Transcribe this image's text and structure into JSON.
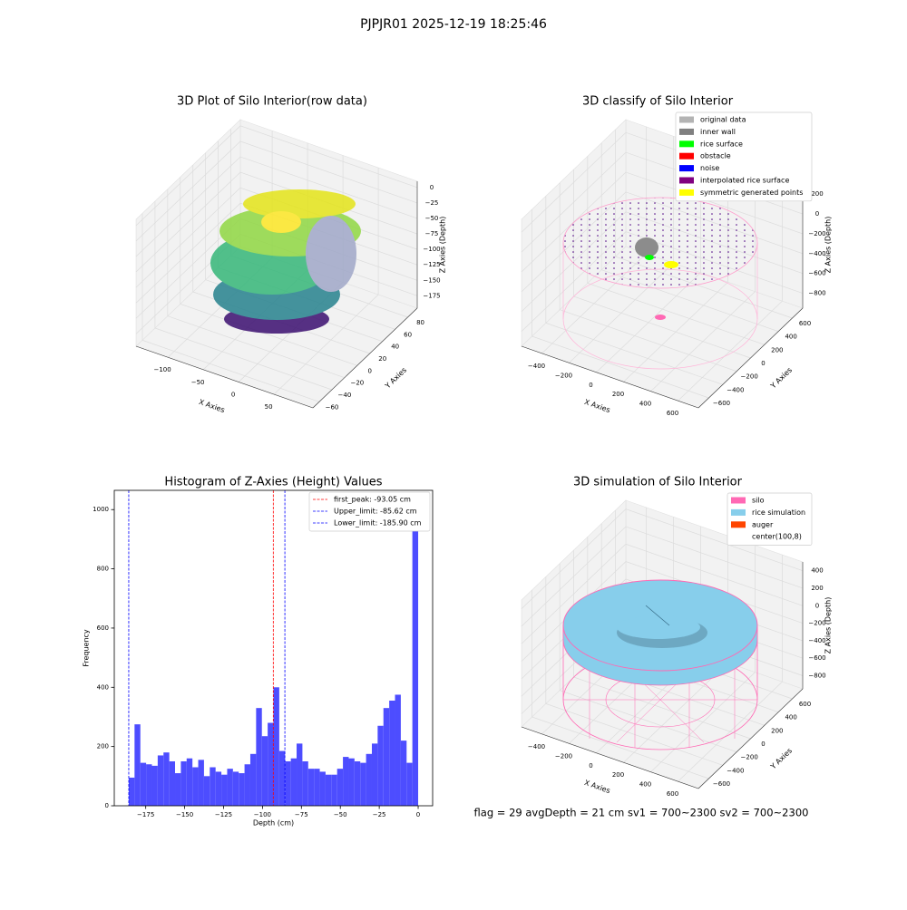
{
  "suptitle": "PJPJR01 2025-12-19 18:25:46",
  "footer": "flag = 29  avgDepth = 21 cm    sv1 = 700~2300  sv2 = 700~2300",
  "chart_data": [
    {
      "type": "scatter3d",
      "title": "3D Plot of Silo Interior(row data)",
      "xlabel": "X Axies",
      "ylabel": "Y Axies",
      "zlabel": "Z Axies (Depth)",
      "xlim": [
        -145,
        105
      ],
      "ylim": [
        -70,
        95
      ],
      "zlim": [
        -195,
        10
      ],
      "xticks": [
        {
          "value": -100,
          "label": "−100"
        },
        {
          "value": -50,
          "label": "−50"
        },
        0,
        50
      ],
      "yticks": [
        {
          "value": -60,
          "label": "−60"
        },
        {
          "value": -40,
          "label": "−40"
        },
        {
          "value": -20,
          "label": "−20"
        },
        0,
        20,
        40,
        60,
        80
      ],
      "zticks": [
        {
          "value": -175,
          "label": "−175"
        },
        {
          "value": -150,
          "label": "−150"
        },
        {
          "value": -125,
          "label": "−125"
        },
        {
          "value": -100,
          "label": "−100"
        },
        {
          "value": -75,
          "label": "−75"
        },
        {
          "value": -50,
          "label": "−50"
        },
        {
          "value": -25,
          "label": "−25"
        },
        0
      ]
    },
    {
      "type": "scatter3d",
      "title": "3D classify of Silo Interior",
      "xlabel": "X Axies",
      "ylabel": "Y Axies",
      "zlabel": "Z Axies (Depth)",
      "xlim": [
        -550,
        750
      ],
      "ylim": [
        -750,
        750
      ],
      "zlim": [
        -950,
        330
      ],
      "xticks": [
        {
          "value": -400,
          "label": "−400"
        },
        {
          "value": -200,
          "label": "−200"
        },
        0,
        200,
        400,
        600
      ],
      "yticks": [
        {
          "value": -600,
          "label": "−600"
        },
        {
          "value": -400,
          "label": "−400"
        },
        {
          "value": -200,
          "label": "−200"
        },
        0,
        200,
        400,
        600
      ],
      "zticks": [
        {
          "value": -800,
          "label": "−800"
        },
        {
          "value": -600,
          "label": "−600"
        },
        {
          "value": -400,
          "label": "−400"
        },
        {
          "value": -200,
          "label": "−200"
        },
        0,
        200
      ],
      "legend": [
        {
          "label": "original data",
          "color": "#b3b3b3"
        },
        {
          "label": "inner wall",
          "color": "#808080"
        },
        {
          "label": "rice surface",
          "color": "#00ff00"
        },
        {
          "label": "obstacle",
          "color": "#ff0000"
        },
        {
          "label": "noise",
          "color": "#0000ff"
        },
        {
          "label": "interpolated rice surface",
          "color": "#800080"
        },
        {
          "label": "symmetric generated points",
          "color": "#ffff00"
        }
      ]
    },
    {
      "type": "histogram",
      "title": "Histogram of Z-Axies (Height) Values",
      "xlabel": "Depth (cm)",
      "ylabel": "Frequency",
      "color": "#4d4dff",
      "bins": [
        -185.9,
        -182.18,
        -178.46,
        -174.75,
        -171.03,
        -167.31,
        -163.59,
        -159.87,
        -156.16,
        -152.44,
        -148.72,
        -145.0,
        -141.28,
        -137.57,
        -133.85,
        -130.13,
        -126.41,
        -122.69,
        -118.98,
        -115.26,
        -111.54,
        -107.82,
        -104.1,
        -100.39,
        -96.67,
        -92.95,
        -89.23,
        -85.51,
        -81.79,
        -78.08,
        -74.36,
        -70.64,
        -66.92,
        -63.2,
        -59.49,
        -55.77,
        -52.05,
        -48.33,
        -44.61,
        -40.9,
        -37.18,
        -33.46,
        -29.74,
        -26.02,
        -22.31,
        -18.59,
        -14.87,
        -11.15,
        -7.43,
        -3.72,
        0
      ],
      "values": [
        95,
        275,
        145,
        140,
        135,
        170,
        180,
        150,
        110,
        150,
        160,
        130,
        155,
        100,
        130,
        115,
        105,
        125,
        115,
        110,
        140,
        175,
        330,
        235,
        280,
        400,
        185,
        150,
        160,
        210,
        150,
        125,
        125,
        115,
        105,
        105,
        125,
        165,
        160,
        150,
        145,
        175,
        210,
        270,
        330,
        355,
        375,
        220,
        145,
        1020
      ],
      "xlim": [
        -195.2,
        9.3
      ],
      "ylim": [
        0,
        1065
      ],
      "xticks": [
        {
          "value": -175,
          "label": "−175"
        },
        {
          "value": -150,
          "label": "−150"
        },
        {
          "value": -125,
          "label": "−125"
        },
        {
          "value": -100,
          "label": "−100"
        },
        {
          "value": -75,
          "label": "−75"
        },
        {
          "value": -50,
          "label": "−50"
        },
        {
          "value": -25,
          "label": "−25"
        },
        0
      ],
      "yticks": [
        0,
        200,
        400,
        600,
        800,
        1000
      ],
      "vlines": [
        {
          "label": "first_peak: -93.05 cm",
          "value": -93.05,
          "color": "#ff0000"
        },
        {
          "label": "Upper_limit: -85.62 cm",
          "value": -85.62,
          "color": "#0000ff"
        },
        {
          "label": "Lower_limit: -185.90 cm",
          "value": -185.9,
          "color": "#0000ff"
        }
      ]
    },
    {
      "type": "surface3d",
      "title": "3D simulation of Silo Interior",
      "xlabel": "X Axies",
      "ylabel": "Y Axies",
      "zlabel": "Z Axies (Depth)",
      "xlim": [
        -550,
        750
      ],
      "ylim": [
        -750,
        750
      ],
      "zlim": [
        -950,
        500
      ],
      "xticks": [
        {
          "value": -400,
          "label": "−400"
        },
        {
          "value": -200,
          "label": "−200"
        },
        0,
        200,
        400,
        600
      ],
      "yticks": [
        {
          "value": -600,
          "label": "−600"
        },
        {
          "value": -400,
          "label": "−400"
        },
        {
          "value": -200,
          "label": "−200"
        },
        0,
        200,
        400,
        600
      ],
      "zticks": [
        {
          "value": -800,
          "label": "−800"
        },
        {
          "value": -600,
          "label": "−600"
        },
        {
          "value": -400,
          "label": "−400"
        },
        {
          "value": -200,
          "label": "−200"
        },
        0,
        200,
        400
      ],
      "legend": [
        {
          "label": "silo",
          "color": "#ff69b4"
        },
        {
          "label": "rice simulation",
          "color": "#87ceeb"
        },
        {
          "label": "auger",
          "color": "#ff4500"
        },
        {
          "label": "center(100,8)",
          "color": "#ffffff"
        }
      ]
    }
  ]
}
